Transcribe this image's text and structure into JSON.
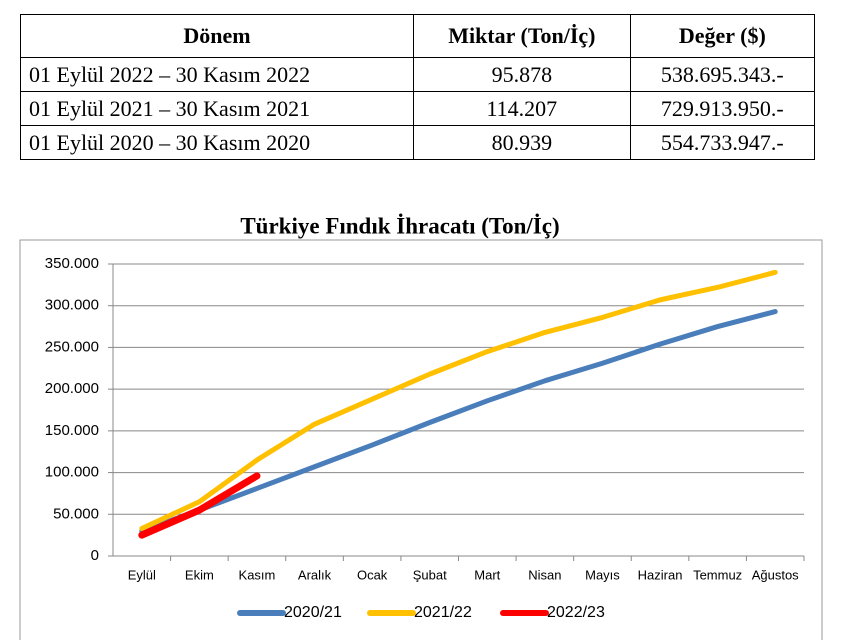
{
  "table": {
    "header": [
      "Dönem",
      "Miktar (Ton/İç)",
      "Değer ($)"
    ],
    "rows": [
      [
        "01 Eylül 2022 – 30 Kasım 2022",
        "95.878",
        "538.695.343.-"
      ],
      [
        "01 Eylül 2021 – 30 Kasım 2021",
        "114.207",
        "729.913.950.-"
      ],
      [
        "01 Eylül 2020 – 30 Kasım 2020",
        "80.939",
        "554.733.947.-"
      ]
    ]
  },
  "chart_data": {
    "type": "line",
    "title": "Türkiye Fındık İhracatı (Ton/İç)",
    "categories": [
      "Eylül",
      "Ekim",
      "Kasım",
      "Aralık",
      "Ocak",
      "Şubat",
      "Mart",
      "Nisan",
      "Mayıs",
      "Haziran",
      "Temmuz",
      "Ağustos"
    ],
    "series": [
      {
        "name": "2020/21",
        "color": "#4a7ebb",
        "values": [
          30000,
          55000,
          81000,
          107000,
          133000,
          160000,
          186000,
          210000,
          231000,
          254000,
          275000,
          293000
        ]
      },
      {
        "name": "2021/22",
        "color": "#ffc000",
        "values": [
          33000,
          65000,
          115000,
          158000,
          188000,
          218000,
          245000,
          268000,
          286000,
          307000,
          322000,
          340000
        ]
      },
      {
        "name": "2022/23",
        "color": "#ff0000",
        "values": [
          25000,
          55000,
          96000,
          null,
          null,
          null,
          null,
          null,
          null,
          null,
          null,
          null
        ]
      }
    ],
    "ylim": [
      0,
      350000
    ],
    "yticks": [
      0,
      {
        "value": 50000,
        "label": "50.000"
      },
      {
        "value": 100000,
        "label": "100.000"
      },
      {
        "value": 150000,
        "label": "150.000"
      },
      {
        "value": 200000,
        "label": "200.000"
      },
      {
        "value": 250000,
        "label": "250.000"
      },
      {
        "value": 300000,
        "label": "300.000"
      },
      {
        "value": 350000,
        "label": "350.000"
      }
    ],
    "grid": true,
    "legend": "bottom"
  }
}
